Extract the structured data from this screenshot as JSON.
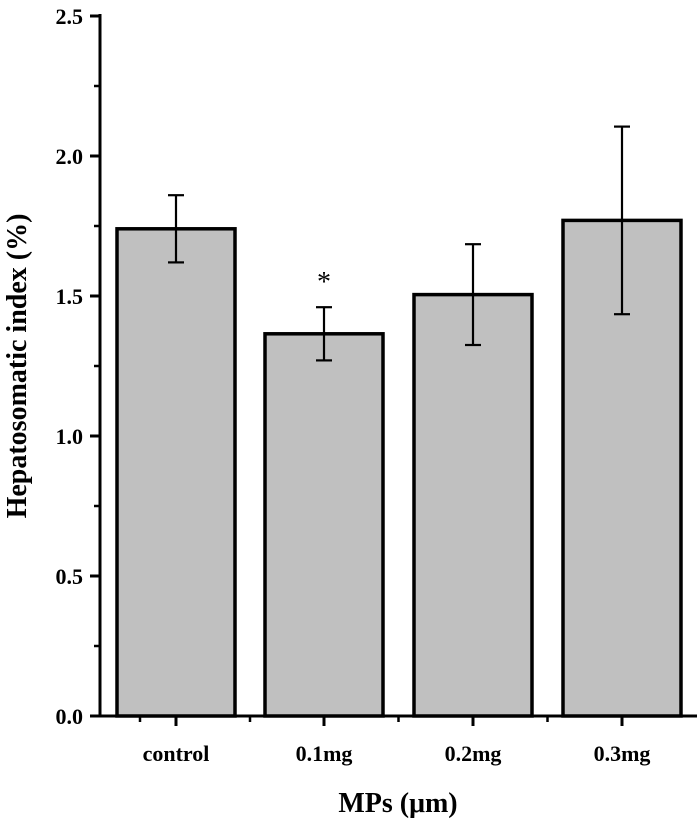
{
  "chart_data": {
    "type": "bar",
    "title": "",
    "xlabel": "MPs (μm)",
    "ylabel": "Hepatosomatic index (%)",
    "categories": [
      "control",
      "0.1mg",
      "0.2mg",
      "0.3mg"
    ],
    "values": [
      1.74,
      1.365,
      1.505,
      1.77
    ],
    "errors": [
      0.12,
      0.095,
      0.18,
      0.335
    ],
    "annotations": [
      {
        "category": "0.1mg",
        "text": "*"
      }
    ],
    "ylim": [
      0,
      2.5
    ],
    "yticks": [
      0.0,
      0.5,
      1.0,
      1.5,
      2.0,
      2.5
    ],
    "ytick_labels": [
      "0.0",
      "0.5",
      "1.0",
      "1.5",
      "2.0",
      "2.5"
    ],
    "grid": false,
    "colors": {
      "bar_fill": "#c0c0c0",
      "bar_stroke": "#000000"
    }
  }
}
